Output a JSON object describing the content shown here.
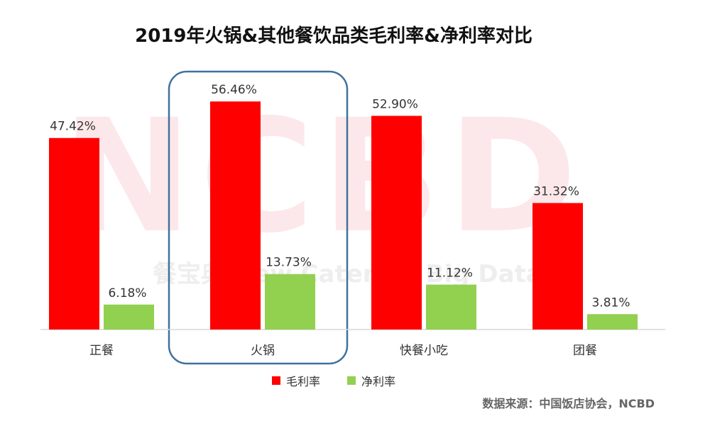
{
  "chart_data": {
    "type": "bar",
    "title": "2019年火锅&其他餐饮品类毛利率&净利率对比",
    "categories": [
      "正餐",
      "火锅",
      "快餐小吃",
      "团餐"
    ],
    "series": [
      {
        "name": "毛利率",
        "values": [
          47.42,
          56.46,
          52.9,
          31.32
        ],
        "labels": [
          "47.42%",
          "56.46%",
          "52.90%",
          "31.32%"
        ],
        "color": "#ff0000"
      },
      {
        "name": "净利率",
        "values": [
          6.18,
          13.73,
          11.12,
          3.81
        ],
        "labels": [
          "6.18%",
          "13.73%",
          "11.12%",
          "3.81%"
        ],
        "color": "#92d050"
      }
    ],
    "highlighted_category": "火锅",
    "highlight_color": "#41719c",
    "grid": false,
    "legend_position": "bottom"
  },
  "watermark": {
    "logo": "NCBD",
    "text": "餐宝典 New Catering Big Data"
  },
  "source_note": "数据来源：中国饭店协会，NCBD"
}
